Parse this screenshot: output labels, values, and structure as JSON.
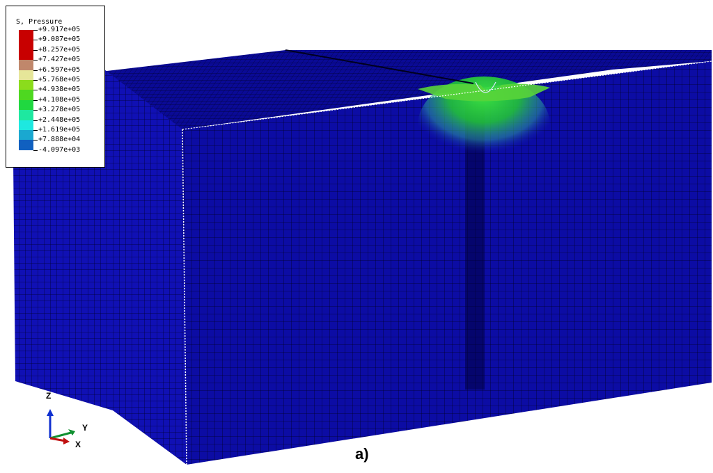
{
  "viewport": {
    "model_colors": {
      "mesh_fill": "#0e0ea8",
      "mesh_line": "#000020",
      "edge_highlight": "#ffffff",
      "stress_high": "#22d422",
      "stress_mid": "#7fe05a",
      "stress_low": "#2fb4a8"
    }
  },
  "legend": {
    "title": "S, Pressure",
    "entries": [
      {
        "label": "+9.917e+05",
        "color": "#c80000"
      },
      {
        "label": "+9.087e+05",
        "color": "#c80000"
      },
      {
        "label": "+8.257e+05",
        "color": "#c80000"
      },
      {
        "label": "+7.427e+05",
        "color": "#c0876b"
      },
      {
        "label": "+6.597e+05",
        "color": "#e6e699"
      },
      {
        "label": "+5.768e+05",
        "color": "#8bdc1c"
      },
      {
        "label": "+4.938e+05",
        "color": "#4ed820"
      },
      {
        "label": "+4.108e+05",
        "color": "#20d840"
      },
      {
        "label": "+3.278e+05",
        "color": "#1ee8a0"
      },
      {
        "label": "+2.448e+05",
        "color": "#1ee8e0"
      },
      {
        "label": "+1.619e+05",
        "color": "#1aa8d0"
      },
      {
        "label": "+7.888e+04",
        "color": "#1060c0"
      },
      {
        "label": "-4.097e+03",
        "color": "#1010b0"
      }
    ]
  },
  "triad": {
    "z_label": "Z",
    "y_label": "Y",
    "x_label": "X",
    "colors": {
      "z": "#1030d0",
      "y": "#109030",
      "x": "#c01010"
    }
  },
  "caption": "a)"
}
